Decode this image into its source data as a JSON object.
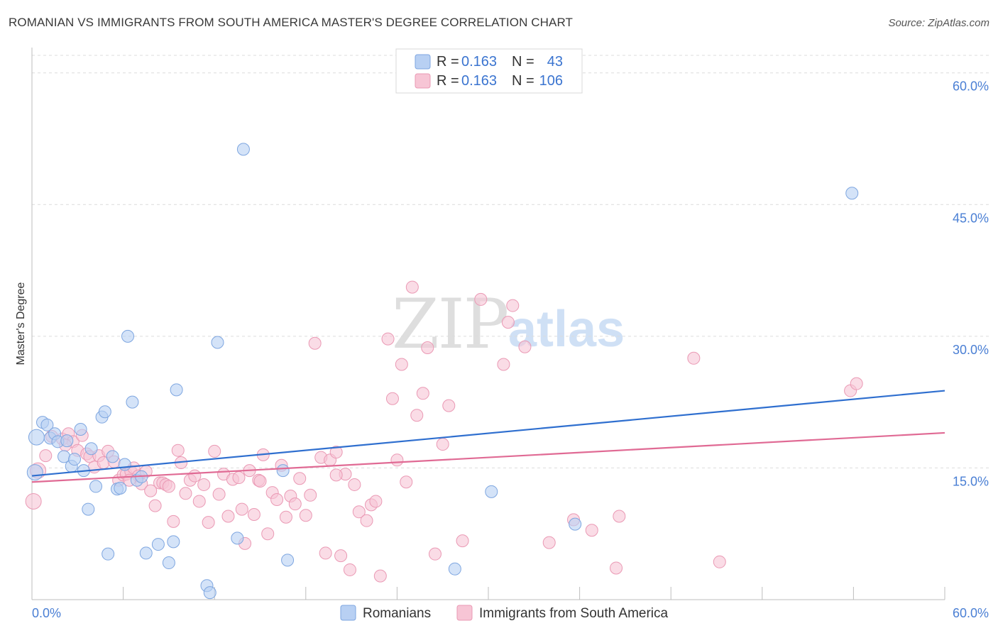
{
  "header": {
    "title": "ROMANIAN VS IMMIGRANTS FROM SOUTH AMERICA MASTER'S DEGREE CORRELATION CHART",
    "source": "Source: ZipAtlas.com"
  },
  "watermark": {
    "zip": "ZIP",
    "atlas": "atlas"
  },
  "legend": {
    "r_label": "R =",
    "n_label": "N =",
    "rows": [
      {
        "r": "0.163",
        "n": "43"
      },
      {
        "r": "0.163",
        "n": "106"
      }
    ]
  },
  "chart_data": {
    "type": "scatter",
    "title": "ROMANIAN VS IMMIGRANTS FROM SOUTH AMERICA MASTER'S DEGREE CORRELATION CHART",
    "xlabel": "",
    "ylabel": "Master's Degree",
    "xlim": [
      0,
      60
    ],
    "ylim": [
      0,
      62
    ],
    "x_tick_labels": [
      "0.0%",
      "60.0%"
    ],
    "y_tick_values": [
      15,
      30,
      45,
      60
    ],
    "y_tick_labels": [
      "15.0%",
      "30.0%",
      "45.0%",
      "60.0%"
    ],
    "grid": true,
    "colors": {
      "romanians_fill": "#b8d0f3",
      "romanians_stroke": "#7ea6e0",
      "romanians_line": "#2f6fcf",
      "immigrants_fill": "#f7c5d5",
      "immigrants_stroke": "#ea99b4",
      "immigrants_line": "#e06a94"
    },
    "series": [
      {
        "name": "Romanians",
        "trend": {
          "x": [
            0,
            60
          ],
          "y": [
            14.1,
            23.8
          ]
        },
        "points": [
          [
            0.3,
            18.5
          ],
          [
            0.7,
            20.2
          ],
          [
            1.0,
            19.9
          ],
          [
            1.2,
            18.4
          ],
          [
            1.5,
            18.9
          ],
          [
            1.7,
            18.0
          ],
          [
            2.1,
            16.3
          ],
          [
            2.3,
            18.1
          ],
          [
            2.6,
            15.2
          ],
          [
            2.8,
            16.0
          ],
          [
            3.2,
            19.4
          ],
          [
            3.4,
            14.7
          ],
          [
            3.7,
            10.3
          ],
          [
            3.9,
            17.2
          ],
          [
            4.2,
            12.9
          ],
          [
            4.6,
            20.8
          ],
          [
            4.8,
            21.4
          ],
          [
            5.0,
            5.2
          ],
          [
            5.3,
            16.3
          ],
          [
            5.6,
            12.6
          ],
          [
            5.8,
            12.7
          ],
          [
            6.1,
            15.4
          ],
          [
            6.3,
            30.0
          ],
          [
            6.6,
            22.5
          ],
          [
            6.9,
            13.6
          ],
          [
            7.2,
            14.0
          ],
          [
            7.5,
            5.3
          ],
          [
            8.3,
            6.3
          ],
          [
            9.0,
            4.2
          ],
          [
            9.3,
            6.6
          ],
          [
            9.5,
            23.9
          ],
          [
            11.5,
            1.6
          ],
          [
            11.7,
            0.8
          ],
          [
            12.2,
            29.3
          ],
          [
            13.5,
            7.0
          ],
          [
            13.9,
            51.3
          ],
          [
            16.5,
            14.7
          ],
          [
            16.8,
            4.5
          ],
          [
            27.8,
            3.5
          ],
          [
            30.2,
            12.3
          ],
          [
            35.7,
            8.6
          ],
          [
            53.9,
            46.3
          ],
          [
            0.2,
            14.5
          ]
        ]
      },
      {
        "name": "Immigrants from South America",
        "trend": {
          "x": [
            0,
            60
          ],
          "y": [
            13.4,
            19.0
          ]
        },
        "points": [
          [
            0.1,
            11.2
          ],
          [
            0.4,
            14.7
          ],
          [
            0.9,
            16.4
          ],
          [
            1.3,
            18.6
          ],
          [
            2.0,
            18.3
          ],
          [
            2.4,
            18.9
          ],
          [
            2.7,
            18.0
          ],
          [
            3.0,
            17.0
          ],
          [
            3.3,
            18.7
          ],
          [
            3.6,
            16.6
          ],
          [
            3.8,
            16.3
          ],
          [
            4.1,
            15.1
          ],
          [
            4.4,
            16.4
          ],
          [
            4.7,
            15.6
          ],
          [
            5.0,
            16.9
          ],
          [
            5.4,
            15.7
          ],
          [
            5.7,
            13.6
          ],
          [
            6.0,
            14.2
          ],
          [
            6.2,
            14.3
          ],
          [
            6.5,
            14.6
          ],
          [
            6.7,
            15.0
          ],
          [
            7.0,
            14.1
          ],
          [
            7.2,
            13.2
          ],
          [
            7.5,
            14.6
          ],
          [
            7.8,
            12.4
          ],
          [
            8.1,
            10.7
          ],
          [
            8.4,
            13.3
          ],
          [
            8.6,
            13.3
          ],
          [
            8.8,
            13.1
          ],
          [
            9.0,
            12.9
          ],
          [
            9.3,
            8.9
          ],
          [
            9.6,
            17.0
          ],
          [
            9.8,
            15.6
          ],
          [
            10.1,
            12.1
          ],
          [
            10.4,
            13.6
          ],
          [
            10.7,
            14.1
          ],
          [
            11.0,
            11.2
          ],
          [
            11.3,
            13.1
          ],
          [
            11.6,
            8.8
          ],
          [
            12.0,
            16.9
          ],
          [
            12.3,
            12.0
          ],
          [
            12.6,
            14.3
          ],
          [
            12.9,
            9.5
          ],
          [
            13.2,
            13.7
          ],
          [
            13.6,
            13.9
          ],
          [
            13.8,
            10.3
          ],
          [
            14.0,
            6.4
          ],
          [
            14.3,
            14.7
          ],
          [
            14.6,
            9.7
          ],
          [
            14.9,
            13.6
          ],
          [
            15.2,
            16.5
          ],
          [
            15.5,
            7.5
          ],
          [
            15.8,
            12.2
          ],
          [
            16.1,
            11.4
          ],
          [
            16.4,
            15.3
          ],
          [
            16.7,
            9.4
          ],
          [
            17.0,
            11.8
          ],
          [
            17.3,
            10.9
          ],
          [
            17.6,
            13.8
          ],
          [
            18.0,
            9.6
          ],
          [
            18.3,
            11.9
          ],
          [
            18.6,
            29.2
          ],
          [
            19.0,
            16.2
          ],
          [
            19.3,
            5.3
          ],
          [
            19.6,
            15.9
          ],
          [
            20.0,
            16.8
          ],
          [
            20.3,
            5.0
          ],
          [
            20.6,
            14.3
          ],
          [
            20.9,
            3.4
          ],
          [
            21.2,
            13.1
          ],
          [
            21.5,
            10.0
          ],
          [
            22.0,
            9.0
          ],
          [
            22.3,
            10.8
          ],
          [
            22.6,
            11.2
          ],
          [
            22.9,
            2.7
          ],
          [
            23.4,
            29.7
          ],
          [
            23.7,
            22.9
          ],
          [
            24.0,
            15.9
          ],
          [
            24.3,
            26.8
          ],
          [
            24.6,
            13.4
          ],
          [
            25.0,
            35.6
          ],
          [
            25.3,
            21.0
          ],
          [
            25.7,
            23.5
          ],
          [
            26.0,
            28.7
          ],
          [
            26.5,
            5.2
          ],
          [
            27.0,
            17.7
          ],
          [
            27.4,
            22.1
          ],
          [
            28.3,
            6.7
          ],
          [
            29.5,
            34.2
          ],
          [
            31.0,
            26.8
          ],
          [
            31.3,
            31.6
          ],
          [
            31.6,
            33.5
          ],
          [
            32.4,
            28.8
          ],
          [
            34.0,
            6.5
          ],
          [
            35.6,
            9.1
          ],
          [
            36.8,
            7.9
          ],
          [
            38.6,
            9.5
          ],
          [
            38.4,
            3.6
          ],
          [
            43.5,
            27.5
          ],
          [
            45.2,
            4.3
          ],
          [
            53.8,
            23.8
          ],
          [
            54.2,
            24.6
          ],
          [
            6.4,
            13.6
          ],
          [
            15.0,
            13.5
          ],
          [
            20.0,
            14.2
          ],
          [
            2.2,
            17.6
          ]
        ]
      }
    ]
  },
  "bottom_legend": {
    "items": [
      {
        "label": "Romanians"
      },
      {
        "label": "Immigrants from South America"
      }
    ]
  }
}
